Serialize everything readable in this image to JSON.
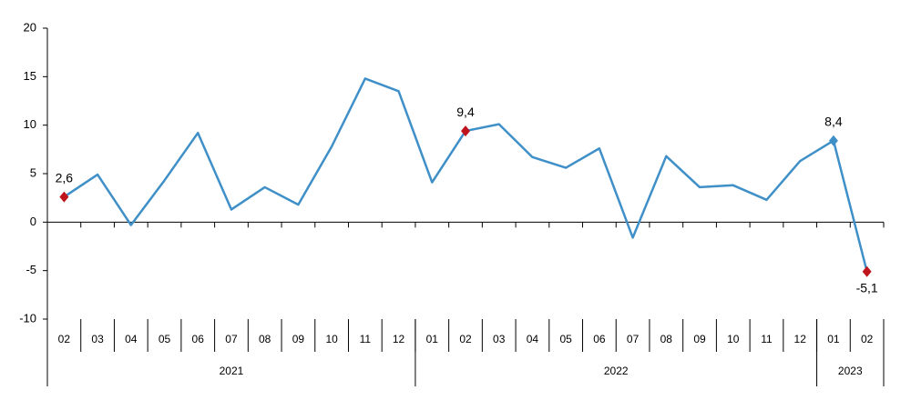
{
  "chart_data": {
    "type": "line",
    "categories": [
      "02",
      "03",
      "04",
      "05",
      "06",
      "07",
      "08",
      "09",
      "10",
      "11",
      "12",
      "01",
      "02",
      "03",
      "04",
      "05",
      "06",
      "07",
      "08",
      "09",
      "10",
      "11",
      "12",
      "01",
      "02"
    ],
    "groups": [
      {
        "label": "2021",
        "count": 11
      },
      {
        "label": "2022",
        "count": 12
      },
      {
        "label": "2023",
        "count": 2
      }
    ],
    "series": [
      {
        "color": "#3f8fc8",
        "values": [
          2.6,
          4.9,
          -0.3,
          4.3,
          9.2,
          1.3,
          3.6,
          1.8,
          7.8,
          14.8,
          13.5,
          4.1,
          9.4,
          10.1,
          6.7,
          5.6,
          7.6,
          -1.6,
          6.8,
          3.6,
          3.8,
          2.3,
          6.3,
          8.4,
          -5.1
        ],
        "value_labels": [
          "2,6",
          null,
          null,
          null,
          null,
          null,
          null,
          null,
          null,
          null,
          null,
          null,
          "9,4",
          null,
          null,
          null,
          null,
          null,
          null,
          null,
          null,
          null,
          null,
          "8,4",
          "-5,1"
        ],
        "marker_colors": [
          "#c0141c",
          null,
          null,
          null,
          null,
          null,
          null,
          null,
          null,
          null,
          null,
          null,
          "#c0141c",
          null,
          null,
          null,
          null,
          null,
          null,
          null,
          null,
          null,
          null,
          "#3f8fc8",
          "#c0141c"
        ]
      }
    ],
    "ylim": [
      -10,
      20
    ],
    "yticks": [
      -10,
      -5,
      0,
      5,
      10,
      15,
      20
    ]
  }
}
